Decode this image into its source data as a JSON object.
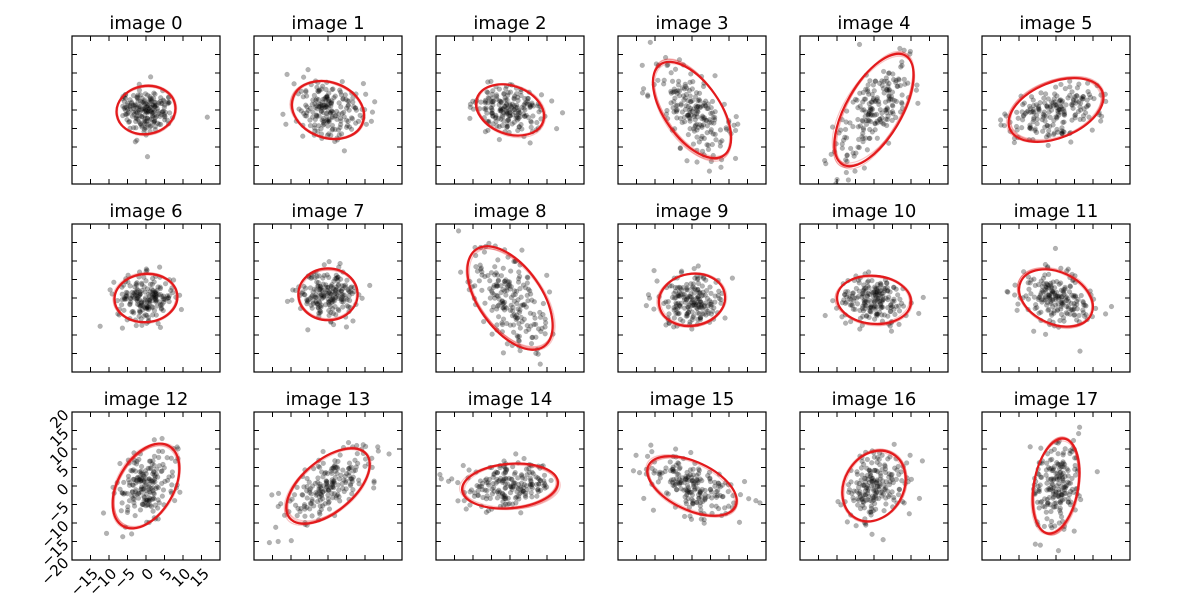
{
  "chart_data": {
    "type": "scatter",
    "layout": "grid of 3 rows × 6 columns of scatter subplots with fitted ellipses",
    "shared_axes": true,
    "xlim": [
      -20,
      20
    ],
    "ylim": [
      -20,
      20
    ],
    "xticks": [
      -15,
      -10,
      -5,
      0,
      5,
      10,
      15
    ],
    "yticks": [
      -20,
      -15,
      -10,
      -5,
      0,
      5,
      10,
      15,
      20
    ],
    "tick_labels_shown_on": "image 12",
    "xtick_labels": [
      "−15",
      "−10",
      "−5",
      "0",
      "5",
      "10",
      "15"
    ],
    "ytick_labels": [
      "−20",
      "−15",
      "−10",
      "−5",
      "0",
      "5",
      "10",
      "15",
      "20"
    ],
    "points_per_panel": 200,
    "point_color": "#000000",
    "ellipse_color": "#e31a1c",
    "panels": [
      {
        "title": "image 0",
        "center": [
          0,
          0
        ],
        "semi_axes": [
          6.5,
          8.0
        ],
        "angle": 100
      },
      {
        "title": "image 1",
        "center": [
          0,
          0
        ],
        "semi_axes": [
          10.0,
          7.5
        ],
        "angle": -20
      },
      {
        "title": "image 2",
        "center": [
          0,
          0
        ],
        "semi_axes": [
          9.5,
          6.5
        ],
        "angle": -20
      },
      {
        "title": "image 3",
        "center": [
          0,
          0
        ],
        "semi_axes": [
          15.0,
          7.5
        ],
        "angle": -55
      },
      {
        "title": "image 4",
        "center": [
          0,
          0
        ],
        "semi_axes": [
          17.0,
          7.5
        ],
        "angle": 60
      },
      {
        "title": "image 5",
        "center": [
          0,
          0
        ],
        "semi_axes": [
          13.5,
          7.5
        ],
        "angle": 22
      },
      {
        "title": "image 6",
        "center": [
          0,
          0
        ],
        "semi_axes": [
          8.5,
          6.5
        ],
        "angle": 5
      },
      {
        "title": "image 7",
        "center": [
          0,
          1
        ],
        "semi_axes": [
          7.0,
          8.0
        ],
        "angle": 90
      },
      {
        "title": "image 8",
        "center": [
          0,
          0
        ],
        "semi_axes": [
          16.0,
          8.5
        ],
        "angle": -55
      },
      {
        "title": "image 9",
        "center": [
          0,
          -0.5
        ],
        "semi_axes": [
          9.0,
          7.0
        ],
        "angle": 10
      },
      {
        "title": "image 10",
        "center": [
          0,
          -0.5
        ],
        "semi_axes": [
          10.0,
          6.5
        ],
        "angle": -5
      },
      {
        "title": "image 11",
        "center": [
          0,
          0
        ],
        "semi_axes": [
          10.5,
          7.0
        ],
        "angle": -25
      },
      {
        "title": "image 12",
        "center": [
          0,
          0
        ],
        "semi_axes": [
          12.5,
          7.5
        ],
        "angle": 60
      },
      {
        "title": "image 13",
        "center": [
          0,
          0
        ],
        "semi_axes": [
          13.5,
          7.0
        ],
        "angle": 40
      },
      {
        "title": "image 14",
        "center": [
          0,
          0
        ],
        "semi_axes": [
          13.0,
          6.0
        ],
        "angle": 5
      },
      {
        "title": "image 15",
        "center": [
          0,
          0
        ],
        "semi_axes": [
          13.0,
          6.5
        ],
        "angle": -25
      },
      {
        "title": "image 16",
        "center": [
          0,
          0
        ],
        "semi_axes": [
          10.0,
          8.0
        ],
        "angle": 60
      },
      {
        "title": "image 17",
        "center": [
          0,
          0
        ],
        "semi_axes": [
          13.0,
          6.0
        ],
        "angle": 80
      }
    ]
  }
}
